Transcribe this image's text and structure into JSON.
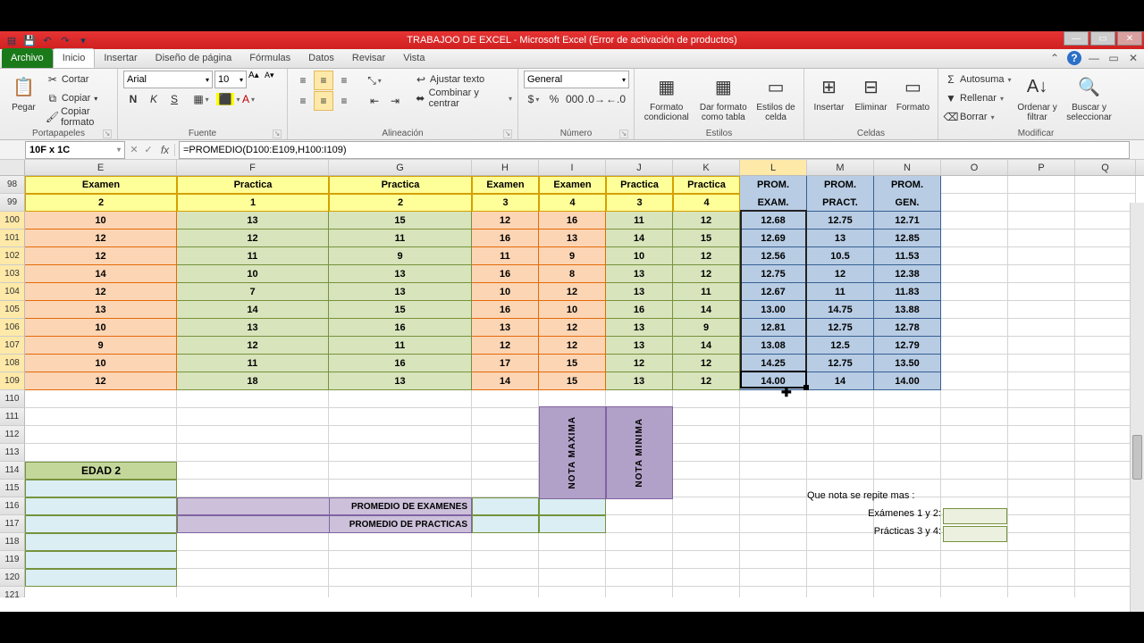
{
  "titlebar": {
    "title": "TRABAJOO DE EXCEL  -  Microsoft Excel (Error de activación de productos)"
  },
  "tabs": {
    "file": "Archivo",
    "items": [
      "Inicio",
      "Insertar",
      "Diseño de página",
      "Fórmulas",
      "Datos",
      "Revisar",
      "Vista"
    ],
    "active_index": 0
  },
  "ribbon": {
    "clipboard": {
      "label": "Portapapeles",
      "paste": "Pegar",
      "cut": "Cortar",
      "copy": "Copiar",
      "fmtpainter": "Copiar formato"
    },
    "font": {
      "label": "Fuente",
      "name": "Arial",
      "size": "10"
    },
    "align": {
      "label": "Alineación",
      "wrap": "Ajustar texto",
      "merge": "Combinar y centrar"
    },
    "number": {
      "label": "Número",
      "format": "General"
    },
    "styles": {
      "label": "Estilos",
      "condfmt": "Formato condicional",
      "table": "Dar formato como tabla",
      "cell": "Estilos de celda"
    },
    "cells": {
      "label": "Celdas",
      "insert": "Insertar",
      "delete": "Eliminar",
      "format": "Formato"
    },
    "editing": {
      "label": "Modificar",
      "sum": "Autosuma",
      "fill": "Rellenar",
      "clear": "Borrar",
      "sort": "Ordenar y filtrar",
      "find": "Buscar y seleccionar"
    }
  },
  "namebox": "10F x 1C",
  "formula": "=PROMEDIO(D100:E109,H100:I109)",
  "columns": [
    "E",
    "F",
    "G",
    "H",
    "I",
    "J",
    "K",
    "L",
    "M",
    "N",
    "O",
    "P",
    "Q"
  ],
  "headerRow1": [
    "Examen",
    "Practica",
    "Practica",
    "Examen",
    "Examen",
    "Practica",
    "Practica",
    "PROM.",
    "PROM.",
    "PROM.",
    "",
    "",
    ""
  ],
  "headerRow2": [
    "2",
    "1",
    "2",
    "3",
    "4",
    "3",
    "4",
    "EXAM.",
    "PRACT.",
    "GEN.",
    "",
    "",
    ""
  ],
  "rows": [
    {
      "n": 100,
      "v": [
        "10",
        "13",
        "15",
        "12",
        "16",
        "11",
        "12",
        "12.68",
        "12.75",
        "12.71"
      ]
    },
    {
      "n": 101,
      "v": [
        "12",
        "12",
        "11",
        "16",
        "13",
        "14",
        "15",
        "12.69",
        "13",
        "12.85"
      ]
    },
    {
      "n": 102,
      "v": [
        "12",
        "11",
        "9",
        "11",
        "9",
        "10",
        "12",
        "12.56",
        "10.5",
        "11.53"
      ]
    },
    {
      "n": 103,
      "v": [
        "14",
        "10",
        "13",
        "16",
        "8",
        "13",
        "12",
        "12.75",
        "12",
        "12.38"
      ]
    },
    {
      "n": 104,
      "v": [
        "12",
        "7",
        "13",
        "10",
        "12",
        "13",
        "11",
        "12.67",
        "11",
        "11.83"
      ]
    },
    {
      "n": 105,
      "v": [
        "13",
        "14",
        "15",
        "16",
        "10",
        "16",
        "14",
        "13.00",
        "14.75",
        "13.88"
      ]
    },
    {
      "n": 106,
      "v": [
        "10",
        "13",
        "16",
        "13",
        "12",
        "13",
        "9",
        "12.81",
        "12.75",
        "12.78"
      ]
    },
    {
      "n": 107,
      "v": [
        "9",
        "12",
        "11",
        "12",
        "12",
        "13",
        "14",
        "13.08",
        "12.5",
        "12.79"
      ]
    },
    {
      "n": 108,
      "v": [
        "10",
        "11",
        "16",
        "17",
        "15",
        "12",
        "12",
        "14.25",
        "12.75",
        "13.50"
      ]
    },
    {
      "n": 109,
      "v": [
        "12",
        "18",
        "13",
        "14",
        "15",
        "13",
        "12",
        "14.00",
        "14",
        "14.00"
      ]
    }
  ],
  "blankRows": [
    110,
    111,
    112,
    113,
    114,
    115,
    116,
    117,
    118,
    119,
    120,
    121
  ],
  "labels": {
    "edad2": "EDAD 2",
    "notamax": "NOTA MAXIMA",
    "notamin": "NOTA MINIMA",
    "promex": "PROMEDIO DE EXAMENES",
    "prompr": "PROMEDIO DE PRACTICAS",
    "repite": "Que nota se repite mas :",
    "ex12": "Exámenes 1 y 2:",
    "pr34": "Prácticas 3 y 4:"
  }
}
